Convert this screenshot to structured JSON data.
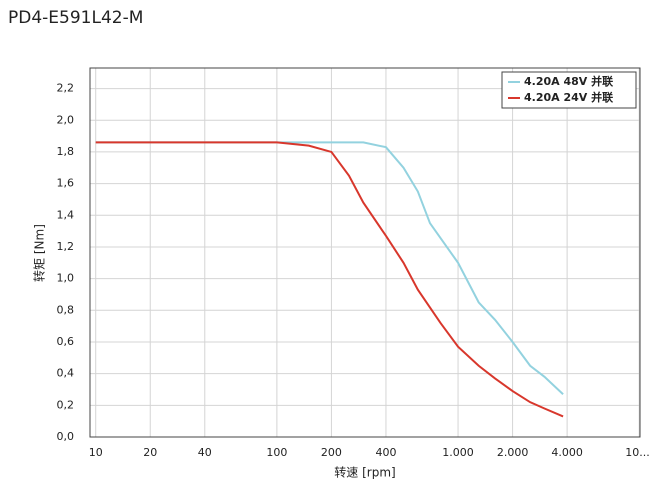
{
  "chart_data": {
    "type": "line",
    "title": "PD4-E591L42-M",
    "x_label": "转速 [rpm]",
    "y_label": "转矩 [Nm]",
    "xscale": "log",
    "grid": true,
    "legend": "upper right",
    "xlim": [
      9.3,
      10100
    ],
    "ylim": [
      0,
      2.33
    ],
    "xticks": [
      10,
      20,
      40,
      100,
      200,
      400,
      {
        "value": 1000,
        "label": "1.000"
      },
      {
        "value": 2000,
        "label": "2.000"
      },
      {
        "value": 4000,
        "label": "4.000"
      },
      {
        "value": 10000,
        "label": "10...."
      }
    ],
    "yticks": [
      {
        "value": 0,
        "label": "0,0"
      },
      {
        "value": 0.2,
        "label": "0,2"
      },
      {
        "value": 0.4,
        "label": "0,4"
      },
      {
        "value": 0.6,
        "label": "0,6"
      },
      {
        "value": 0.8,
        "label": "0,8"
      },
      {
        "value": 1.0,
        "label": "1,0"
      },
      {
        "value": 1.2,
        "label": "1,2"
      },
      {
        "value": 1.4,
        "label": "1,4"
      },
      {
        "value": 1.6,
        "label": "1,6"
      },
      {
        "value": 1.8,
        "label": "1,8"
      },
      {
        "value": 2.0,
        "label": "2,0"
      },
      {
        "value": 2.2,
        "label": "2,2"
      }
    ],
    "series": [
      {
        "name": "4.20A 48V 并联",
        "color": "#93d2df",
        "x": [
          10,
          100,
          200,
          300,
          400,
          500,
          600,
          700,
          1000,
          1300,
          1600,
          2000,
          2500,
          3000,
          3800
        ],
        "values": [
          1.86,
          1.86,
          1.86,
          1.86,
          1.83,
          1.7,
          1.55,
          1.35,
          1.1,
          0.85,
          0.74,
          0.6,
          0.45,
          0.38,
          0.27
        ]
      },
      {
        "name": "4.20A 24V 并联",
        "color": "#d8372c",
        "x": [
          10,
          100,
          150,
          200,
          250,
          300,
          400,
          500,
          600,
          800,
          1000,
          1300,
          1600,
          2000,
          2500,
          3000,
          3800
        ],
        "values": [
          1.86,
          1.86,
          1.84,
          1.8,
          1.65,
          1.48,
          1.27,
          1.1,
          0.93,
          0.72,
          0.57,
          0.45,
          0.37,
          0.29,
          0.22,
          0.18,
          0.13
        ]
      }
    ]
  }
}
